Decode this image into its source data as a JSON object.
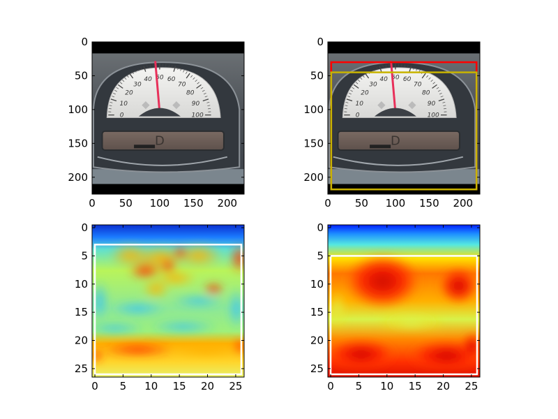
{
  "figure": {
    "background": "#ffffff"
  },
  "chart_data": [
    {
      "id": "panel-top-left",
      "type": "image",
      "content": "speedometer-photo",
      "xlim": [
        0,
        225
      ],
      "ylim": [
        225,
        0
      ],
      "xticks": [
        0,
        50,
        100,
        150,
        200
      ],
      "yticks": [
        0,
        50,
        100,
        150,
        200
      ],
      "dial_labels": [
        "0",
        "10",
        "20",
        "30",
        "40",
        "50",
        "60",
        "70",
        "80",
        "90",
        "100"
      ],
      "display_text": "D",
      "boxes": []
    },
    {
      "id": "panel-top-right",
      "type": "image",
      "content": "speedometer-photo",
      "xlim": [
        0,
        225
      ],
      "ylim": [
        225,
        0
      ],
      "xticks": [
        0,
        50,
        100,
        150,
        200
      ],
      "yticks": [
        0,
        50,
        100,
        150,
        200
      ],
      "dial_labels": [
        "0",
        "10",
        "20",
        "30",
        "40",
        "50",
        "60",
        "70",
        "80",
        "90",
        "100"
      ],
      "display_text": "D",
      "boxes": [
        {
          "color": "#ff0000",
          "x0": 5,
          "y0": 30,
          "x1": 220,
          "y1": 218
        },
        {
          "color": "#c8b400",
          "x0": 5,
          "y0": 45,
          "x1": 220,
          "y1": 218
        }
      ]
    },
    {
      "id": "panel-bottom-left",
      "type": "heatmap",
      "colormap": "jet",
      "xlim": [
        -0.5,
        26.5
      ],
      "ylim": [
        26.5,
        -0.5
      ],
      "xticks": [
        0,
        5,
        10,
        15,
        20,
        25
      ],
      "yticks": [
        0,
        5,
        10,
        15,
        20,
        25
      ],
      "boxes": [
        {
          "color": "#ffffff",
          "x0": 0,
          "y0": 3,
          "x1": 26,
          "y1": 26
        }
      ]
    },
    {
      "id": "panel-bottom-right",
      "type": "heatmap",
      "colormap": "jet",
      "xlim": [
        -0.5,
        26.5
      ],
      "ylim": [
        26.5,
        -0.5
      ],
      "xticks": [
        0,
        5,
        10,
        15,
        20,
        25
      ],
      "yticks": [
        0,
        5,
        10,
        15,
        20,
        25
      ],
      "boxes": [
        {
          "color": "#ffffff",
          "x0": 0,
          "y0": 5,
          "x1": 26,
          "y1": 26
        }
      ]
    }
  ]
}
